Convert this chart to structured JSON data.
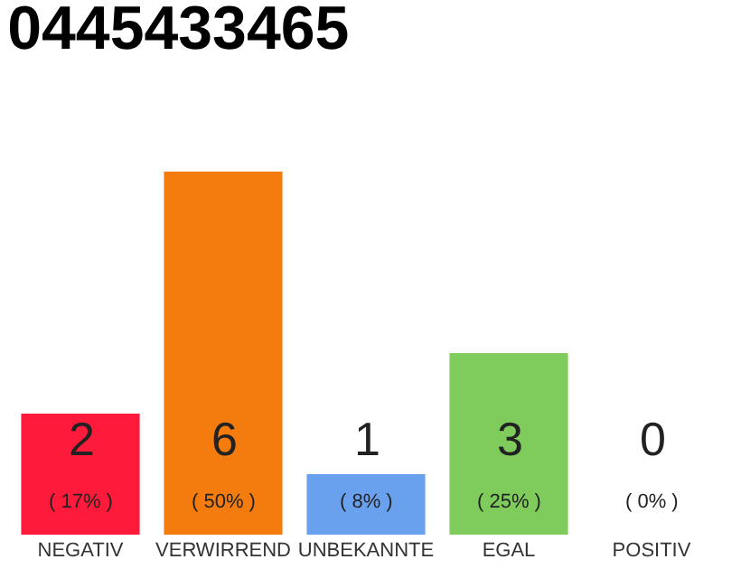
{
  "chart_data": {
    "type": "bar",
    "title": "0445433465",
    "categories": [
      "NEGATIV",
      "VERWIRREND",
      "UNBEKANNTE",
      "EGAL",
      "POSITIV"
    ],
    "values": [
      2,
      6,
      1,
      3,
      0
    ],
    "colors": [
      "#fe1a3a",
      "#f47c0e",
      "#6aa1ef",
      "#7fcb5c",
      "#cccccc"
    ],
    "value_labels": [
      "2\n( 17% )",
      "6\n( 50% )",
      "1\n( 8% )",
      "3\n( 25% )",
      "0\n( 0% )"
    ],
    "ylim": [
      0,
      6
    ],
    "tick_labels": "x"
  }
}
